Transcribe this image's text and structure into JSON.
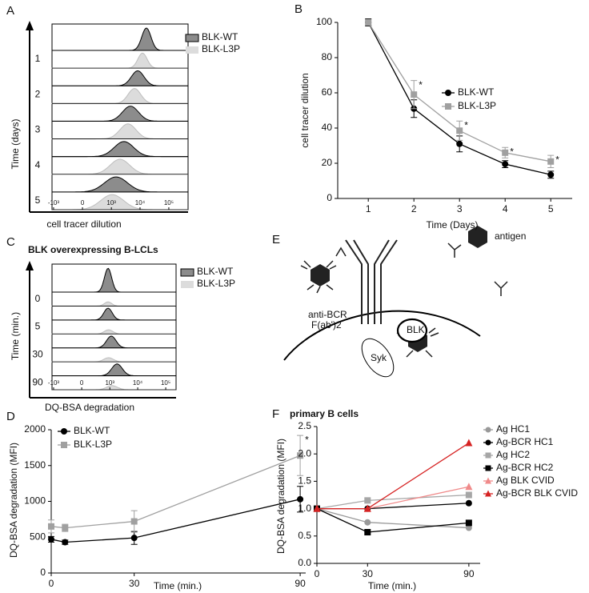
{
  "chart_data": [
    {
      "type": "ridgeline",
      "panel_label": "A",
      "xlabel": "cell tracer dilution",
      "ylabel": "Time (days)",
      "rows": [
        "1",
        "2",
        "3",
        "4",
        "5"
      ],
      "xlim": [
        -1135,
        467000
      ],
      "xticks": [
        {
          "value": -1000,
          "label": "-10³"
        },
        0,
        {
          "value": 1000,
          "label": "10³"
        },
        {
          "value": 10000,
          "label": "10⁴"
        },
        {
          "value": 100000,
          "label": "10⁵"
        }
      ],
      "series": [
        {
          "name": "BLK-WT",
          "color": "#8c8c8c",
          "values": [
            16600,
            8300,
            4650,
            2760,
            1460
          ]
        },
        {
          "name": "BLK-L3P",
          "color": "#dcdcdc",
          "values": [
            12200,
            6400,
            3800,
            2000,
            1070
          ]
        }
      ]
    },
    {
      "type": "line",
      "panel_label": "B",
      "xlabel": "Time (Days)",
      "ylabel": "cell tracer dilution",
      "x": [
        1,
        2,
        3,
        4,
        5
      ],
      "xlim": [
        0.33,
        5.47
      ],
      "xticks": [
        1,
        2,
        3,
        4,
        5
      ],
      "ylim": [
        0,
        100
      ],
      "yticks": [
        0,
        20,
        40,
        60,
        80,
        100
      ],
      "legend": "center right",
      "significance_mark": "*",
      "series": [
        {
          "name": "BLK-WT",
          "color": "#000000",
          "marker": "circle",
          "values": [
            100,
            51,
            31,
            19.5,
            13.5
          ],
          "errors": [
            2,
            5,
            4.5,
            2,
            2
          ]
        },
        {
          "name": "BLK-L3P",
          "color": "#a0a0a0",
          "marker": "square",
          "values": [
            100,
            59,
            38.5,
            26,
            21
          ],
          "errors": [
            1.5,
            8,
            5.5,
            3,
            3.5
          ],
          "significant": [
            false,
            true,
            true,
            true,
            true
          ]
        }
      ]
    },
    {
      "type": "ridgeline",
      "panel_label": "C",
      "title": "BLK overexpressing B-LCLs",
      "xlabel": "DQ-BSA degradation",
      "ylabel": "Time (min.)",
      "rows": [
        "0",
        "5",
        "30",
        "90"
      ],
      "xlim": [
        -1140,
        234000
      ],
      "xticks": [
        {
          "value": -1000,
          "label": "-10³"
        },
        0,
        {
          "value": 1000,
          "label": "10³"
        },
        {
          "value": 10000,
          "label": "10⁴"
        },
        {
          "value": 100000,
          "label": "10⁵"
        }
      ],
      "series": [
        {
          "name": "BLK-WT",
          "color": "#8c8c8c",
          "values": [
            860,
            860,
            1130,
            1820
          ]
        },
        {
          "name": "BLK-L3P",
          "color": "#dcdcdc",
          "values": [
            860,
            900,
            900,
            1200
          ]
        }
      ]
    },
    {
      "type": "line",
      "panel_label": "D",
      "xlabel": "Time (min.)",
      "ylabel": "DQ-BSA degradation (MFI)",
      "x": [
        0,
        5,
        30,
        90
      ],
      "xlim": [
        0,
        92
      ],
      "xticks": [
        0,
        30,
        90
      ],
      "ylim": [
        0,
        2000
      ],
      "yticks": [
        0,
        500,
        1000,
        1500,
        2000
      ],
      "legend": "upper left",
      "significance_mark": "*",
      "series": [
        {
          "name": "BLK-WT",
          "color": "#000000",
          "marker": "circle",
          "values": [
            470,
            430,
            490,
            1030
          ],
          "errors": [
            40,
            30,
            90,
            180
          ]
        },
        {
          "name": "BLK-L3P",
          "color": "#a0a0a0",
          "marker": "square",
          "values": [
            650,
            630,
            720,
            1640
          ],
          "errors": [
            90,
            50,
            150,
            280
          ],
          "significant": [
            false,
            false,
            false,
            true
          ]
        }
      ]
    },
    {
      "type": "line",
      "panel_label": "F",
      "title": "primary B cells",
      "xlabel": "Time (min.)",
      "ylabel": "DQ-BSA degradation (MFI)",
      "x": [
        0,
        30,
        90
      ],
      "xlim": [
        0,
        96.7
      ],
      "xticks": [
        0,
        30,
        90
      ],
      "ylim": [
        0,
        2.5
      ],
      "yticks": [
        {
          "value": 0,
          "label": "0.0"
        },
        0.5,
        {
          "value": 1,
          "label": "1.0"
        },
        1.5,
        {
          "value": 2,
          "label": "2.0"
        },
        2.5
      ],
      "legend": "upper right",
      "series": [
        {
          "name": "Ag HC1",
          "color": "#999999",
          "marker": "circle",
          "values": [
            1,
            0.75,
            0.65
          ]
        },
        {
          "name": "Ag-BCR HC1",
          "color": "#000000",
          "marker": "circle",
          "values": [
            1,
            1.0,
            1.1
          ]
        },
        {
          "name": "Ag HC2",
          "color": "#a6a6a6",
          "marker": "square",
          "values": [
            1,
            1.15,
            1.25
          ]
        },
        {
          "name": "Ag-BCR HC2",
          "color": "#000000",
          "marker": "square",
          "values": [
            1,
            0.57,
            0.74
          ]
        },
        {
          "name": "Ag BLK CVID",
          "color": "#f08a8a",
          "marker": "triangle",
          "values": [
            1,
            1.0,
            1.4
          ]
        },
        {
          "name": "Ag-BCR BLK CVID",
          "color": "#d62222",
          "marker": "triangle",
          "values": [
            1,
            1.0,
            2.2
          ]
        }
      ]
    }
  ],
  "diagram": {
    "panel_label": "E",
    "antigen": "antigen",
    "antibody_line1": "anti-BCR",
    "antibody_line2": "F(ab')2",
    "kinase": "BLK",
    "syk": "Syk"
  }
}
